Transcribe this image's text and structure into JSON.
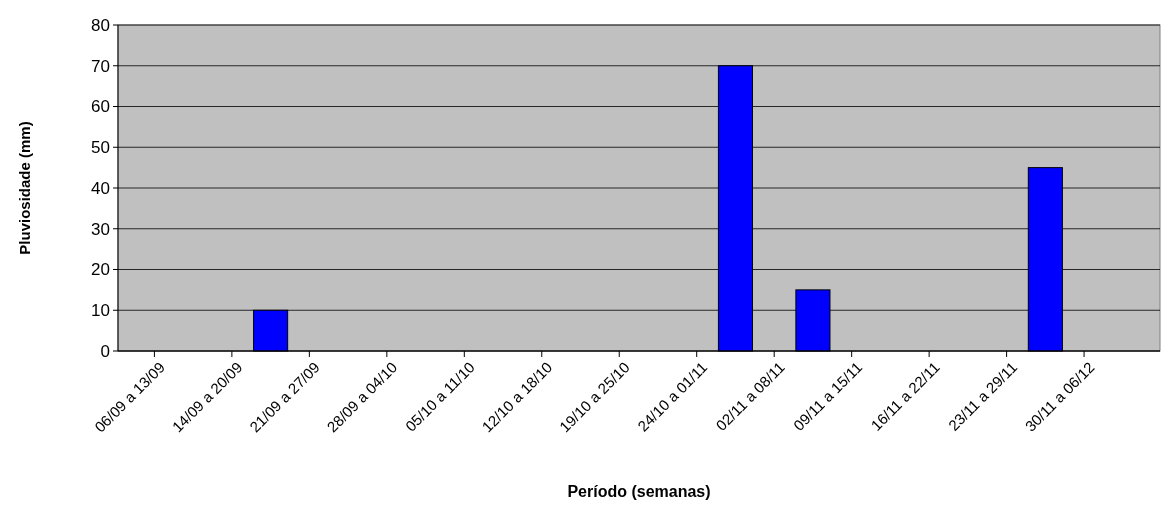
{
  "chart_data": {
    "type": "bar",
    "xlabel": "Período (semanas)",
    "ylabel": "Pluviosidade (mm)",
    "categories": [
      "06/09 a 13/09",
      "14/09 a 20/09",
      "21/09 a 27/09",
      "28/09 a 04/10",
      "05/10 a 11/10",
      "12/10 a 18/10",
      "19/10 a 25/10",
      "24/10 a 01/11",
      "02/11 a 08/11",
      "09/11 a 15/11",
      "16/11 a 22/11",
      "23/11 a 29/11",
      "30/11 a 06/12"
    ],
    "values": [
      0,
      10,
      0,
      0,
      0,
      0,
      0,
      70,
      15,
      0,
      0,
      45,
      0
    ],
    "color": "#0000ff",
    "ylim": [
      0,
      80
    ],
    "yticks": [
      0,
      10,
      20,
      30,
      40,
      50,
      60,
      70,
      80
    ],
    "grid": "y"
  }
}
